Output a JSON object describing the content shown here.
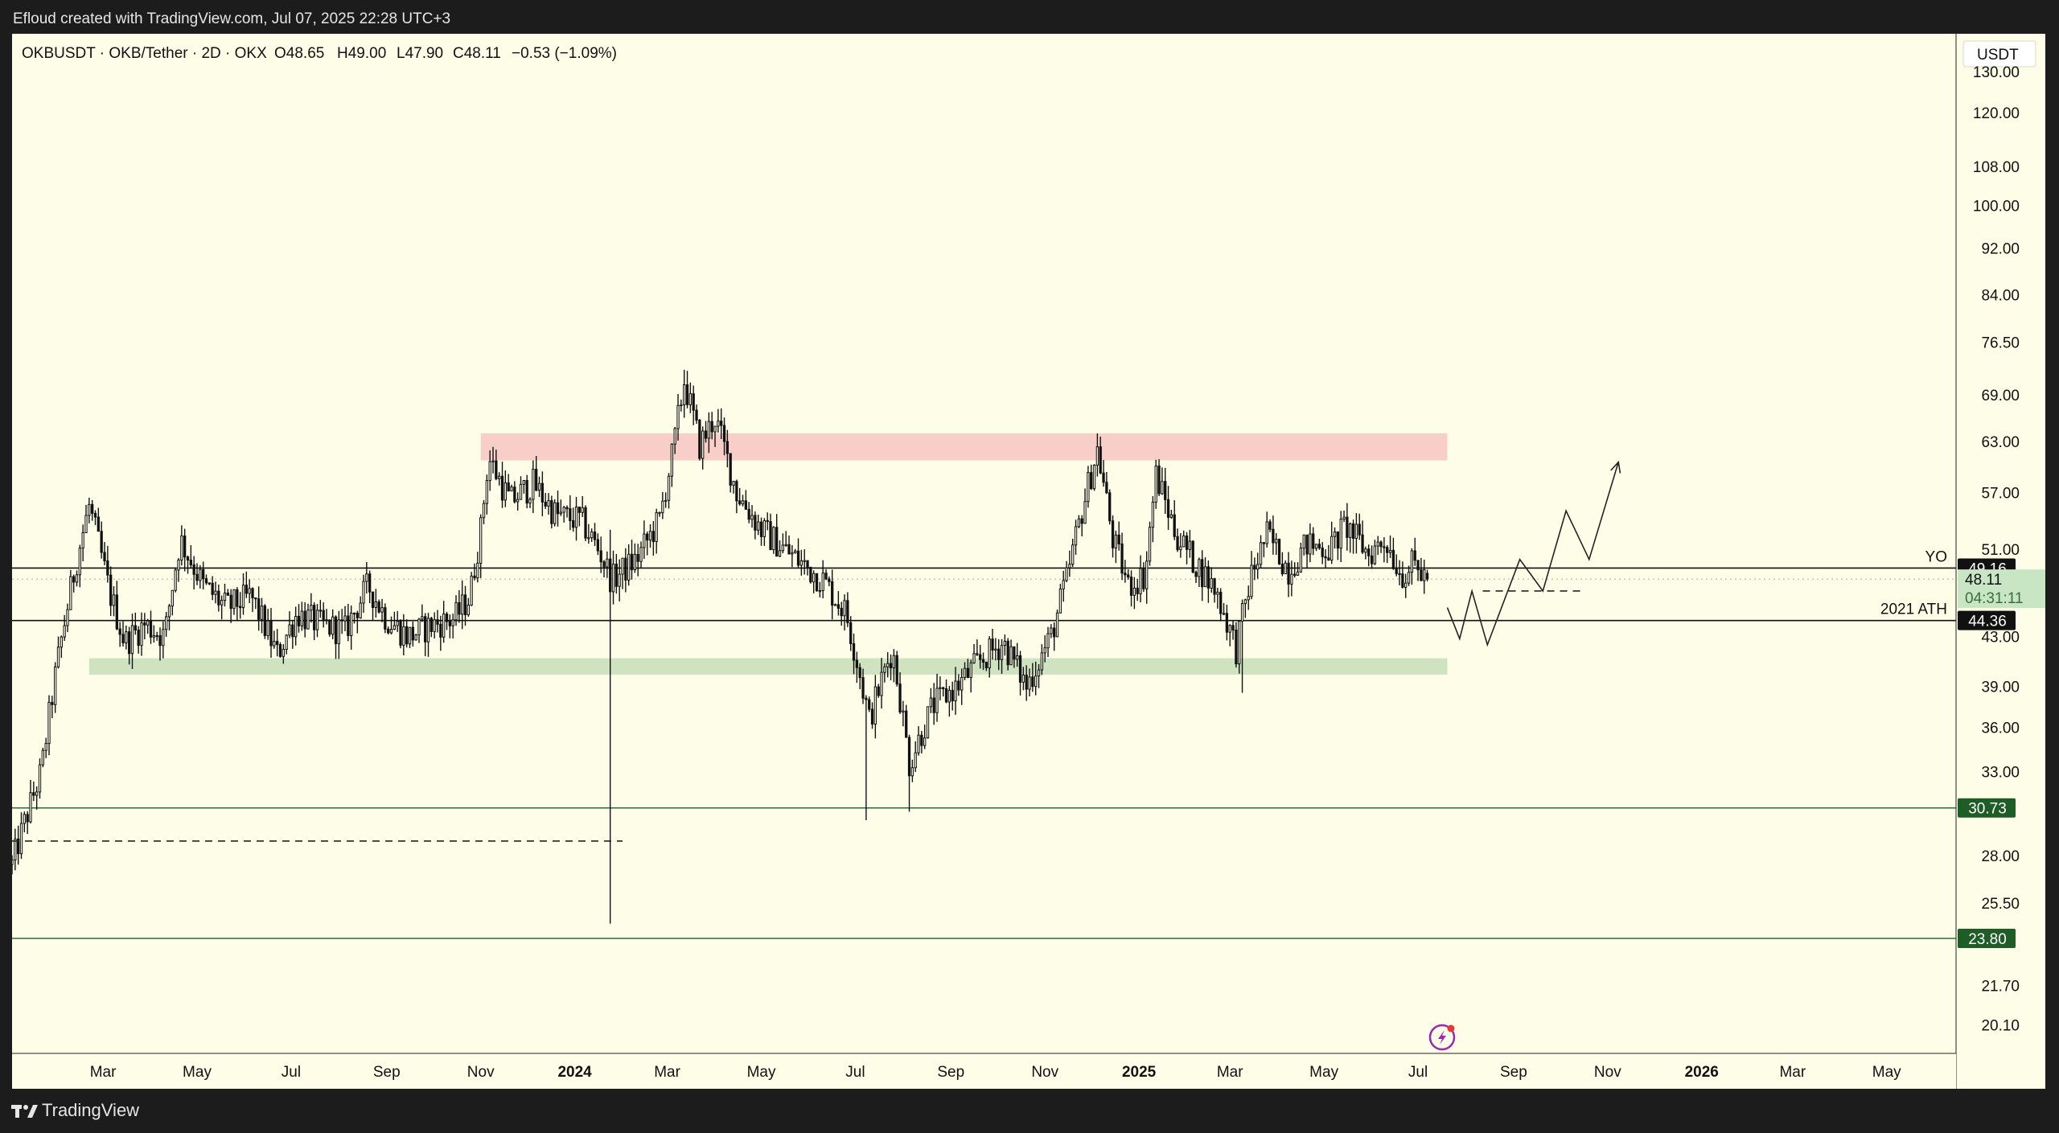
{
  "header": {
    "attribution": "Efloud created with TradingView.com, Jul 07, 2025 22:28 UTC+3"
  },
  "footer": {
    "brand": "TradingView",
    "logo_icon": "tradingview-logo-icon"
  },
  "legend": {
    "symbol_line": "OKBUSDT · OKB/Tether · 2D · OKX",
    "open": "O48.65",
    "high": "H49.00",
    "low": "L47.90",
    "close": "C48.11",
    "change": "−0.53 (−1.09%)"
  },
  "axis": {
    "currency": "USDT",
    "price_ticks": [
      "130.00",
      "120.00",
      "108.00",
      "100.00",
      "92.00",
      "84.00",
      "76.50",
      "69.00",
      "63.00",
      "57.00",
      "51.00",
      "43.00",
      "39.00",
      "36.00",
      "33.00",
      "28.00",
      "25.50",
      "21.70",
      "20.10"
    ],
    "time_ticks": [
      "Mar",
      "May",
      "Jul",
      "Sep",
      "Nov",
      "2024",
      "Mar",
      "May",
      "Jul",
      "Sep",
      "Nov",
      "2025",
      "Mar",
      "May",
      "Jul",
      "Sep",
      "Nov",
      "2026",
      "Mar",
      "May"
    ],
    "bold_time_ticks": [
      "2024",
      "2025",
      "2026"
    ]
  },
  "price_labels": {
    "yo": {
      "value": "49.16",
      "line_label": "YO"
    },
    "last": {
      "value": "48.11",
      "countdown": "04:31:11"
    },
    "ath": {
      "value": "44.36",
      "line_label": "2021 ATH"
    },
    "support_1": {
      "value": "30.73"
    },
    "support_2": {
      "value": "23.80"
    }
  },
  "colors": {
    "background": "#fefee8",
    "frame": "#1c1c1c",
    "resistance_zone": "#f8cfc8",
    "support_zone": "#cfe3c0",
    "last_price_bg": "#c9e6c4",
    "support_label_bg": "#1e5e26",
    "support_line": "#2e6b3a",
    "candles": "#111111",
    "accent_icon": "#9c27b0"
  },
  "icons": {
    "replay": "lightning-replay-icon"
  },
  "chart_data": {
    "type": "candlestick",
    "title": "OKBUSDT · OKB/Tether · 2D · OKX",
    "timeframe": "2D",
    "price_scale": "log",
    "x_range": [
      "2023-01-01",
      "2026-06-15"
    ],
    "y_range": [
      19.0,
      140.0
    ],
    "grid": false,
    "last_bar": {
      "open": 48.65,
      "high": 49.0,
      "low": 47.9,
      "close": 48.11,
      "change": -0.53,
      "change_pct": -1.09
    },
    "price_path": [
      [
        "2023-01-01",
        27.5
      ],
      [
        "2023-01-20",
        33.0
      ],
      [
        "2023-02-01",
        42.0
      ],
      [
        "2023-02-12",
        50.0
      ],
      [
        "2023-02-20",
        55.5
      ],
      [
        "2023-03-05",
        47.0
      ],
      [
        "2023-03-15",
        42.5
      ],
      [
        "2023-03-28",
        44.0
      ],
      [
        "2023-04-10",
        43.0
      ],
      [
        "2023-04-20",
        52.0
      ],
      [
        "2023-05-05",
        47.5
      ],
      [
        "2023-05-20",
        45.5
      ],
      [
        "2023-06-05",
        46.5
      ],
      [
        "2023-06-22",
        41.5
      ],
      [
        "2023-07-05",
        45.0
      ],
      [
        "2023-07-20",
        44.0
      ],
      [
        "2023-08-05",
        43.5
      ],
      [
        "2023-08-20",
        47.5
      ],
      [
        "2023-09-01",
        44.5
      ],
      [
        "2023-09-15",
        43.0
      ],
      [
        "2023-10-01",
        44.0
      ],
      [
        "2023-10-15",
        44.5
      ],
      [
        "2023-10-25",
        46.5
      ],
      [
        "2023-11-01",
        53.0
      ],
      [
        "2023-11-06",
        61.0
      ],
      [
        "2023-11-20",
        56.0
      ],
      [
        "2023-12-05",
        58.0
      ],
      [
        "2023-12-20",
        54.5
      ],
      [
        "2024-01-05",
        54.0
      ],
      [
        "2024-01-18",
        50.5
      ],
      [
        "2024-01-25",
        48.0
      ],
      [
        "2024-02-10",
        50.0
      ],
      [
        "2024-02-25",
        54.0
      ],
      [
        "2024-03-05",
        62.0
      ],
      [
        "2024-03-12",
        71.0
      ],
      [
        "2024-03-22",
        62.5
      ],
      [
        "2024-04-01",
        66.0
      ],
      [
        "2024-04-15",
        57.0
      ],
      [
        "2024-05-01",
        53.0
      ],
      [
        "2024-05-20",
        50.5
      ],
      [
        "2024-06-10",
        48.0
      ],
      [
        "2024-06-25",
        45.0
      ],
      [
        "2024-07-03",
        40.5
      ],
      [
        "2024-07-10",
        36.5
      ],
      [
        "2024-07-25",
        42.0
      ],
      [
        "2024-08-05",
        33.5
      ],
      [
        "2024-08-20",
        37.5
      ],
      [
        "2024-09-05",
        39.0
      ],
      [
        "2024-09-20",
        41.0
      ],
      [
        "2024-10-05",
        42.5
      ],
      [
        "2024-10-20",
        39.0
      ],
      [
        "2024-11-05",
        43.0
      ],
      [
        "2024-11-15",
        48.0
      ],
      [
        "2024-11-25",
        55.0
      ],
      [
        "2024-12-05",
        62.0
      ],
      [
        "2024-12-15",
        52.0
      ],
      [
        "2024-12-25",
        47.5
      ],
      [
        "2025-01-05",
        48.5
      ],
      [
        "2025-01-12",
        59.0
      ],
      [
        "2025-01-25",
        52.5
      ],
      [
        "2025-02-05",
        50.0
      ],
      [
        "2025-02-20",
        47.0
      ],
      [
        "2025-03-05",
        42.0
      ],
      [
        "2025-03-15",
        48.5
      ],
      [
        "2025-03-25",
        52.5
      ],
      [
        "2025-04-08",
        49.0
      ],
      [
        "2025-04-20",
        51.5
      ],
      [
        "2025-05-05",
        51.0
      ],
      [
        "2025-05-15",
        53.5
      ],
      [
        "2025-05-30",
        50.5
      ],
      [
        "2025-06-10",
        52.0
      ],
      [
        "2025-06-20",
        48.5
      ],
      [
        "2025-06-28",
        49.5
      ],
      [
        "2025-07-07",
        48.11
      ]
    ],
    "wick_extremes": [
      {
        "date": "2024-01-23",
        "low": 24.5,
        "high": 53.0
      },
      {
        "date": "2024-07-07",
        "low": 30.0
      },
      {
        "date": "2024-08-05",
        "low": 30.5
      },
      {
        "date": "2024-03-12",
        "high": 72.5
      },
      {
        "date": "2024-12-05",
        "high": 64.0
      },
      {
        "date": "2025-03-08",
        "low": 38.5
      }
    ],
    "zones": [
      {
        "name": "resistance",
        "from": "2023-11-01",
        "to": "2025-07-20",
        "low": 60.7,
        "high": 64.0
      },
      {
        "name": "support",
        "from": "2023-02-20",
        "to": "2025-07-20",
        "low": 39.9,
        "high": 41.2
      }
    ],
    "levels": [
      {
        "value": 49.16,
        "label": "YO"
      },
      {
        "value": 44.36,
        "label": "2021 ATH"
      },
      {
        "value": 30.73
      },
      {
        "value": 23.8
      }
    ],
    "dashed_lines": [
      {
        "from": "2023-01-01",
        "to": "2024-02-01",
        "value": 28.8
      },
      {
        "from": "2025-08-12",
        "to": "2025-10-15",
        "value": 47.0
      }
    ],
    "projection": [
      [
        "2025-07-20",
        45.5
      ],
      [
        "2025-07-28",
        42.8
      ],
      [
        "2025-08-05",
        47.0
      ],
      [
        "2025-08-15",
        42.3
      ],
      [
        "2025-09-05",
        50.0
      ],
      [
        "2025-09-20",
        47.0
      ],
      [
        "2025-10-05",
        55.0
      ],
      [
        "2025-10-20",
        50.0
      ],
      [
        "2025-11-08",
        60.5
      ]
    ]
  }
}
